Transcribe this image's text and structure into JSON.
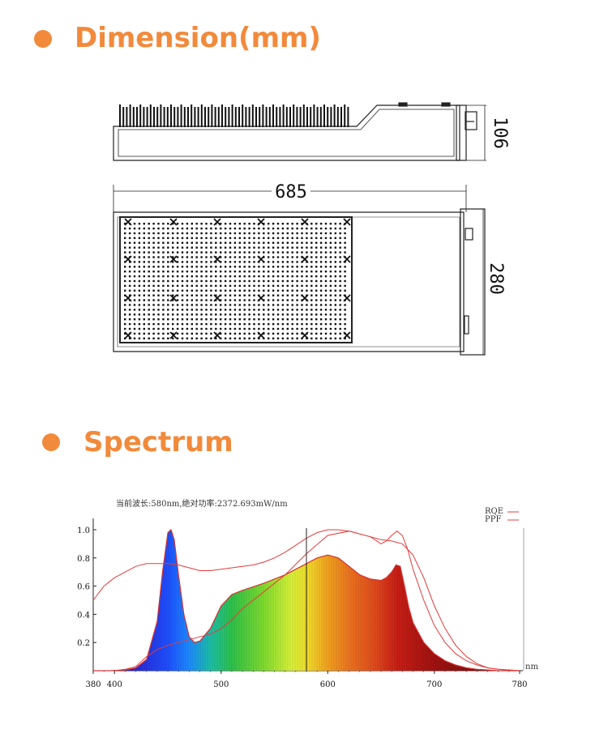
{
  "sections": {
    "dimension_title": "Dimension(mm)",
    "spectrum_title": "Spectrum"
  },
  "drawing": {
    "length_label": "685",
    "height_label": "106",
    "width_label": "280"
  },
  "chart_data": {
    "type": "area",
    "info_text": "当前波长:580nm,绝对功率:2372.693mW/nm",
    "xlabel": "",
    "ylabel": "",
    "x_unit": "nm",
    "xlim": [
      380,
      780
    ],
    "ylim": [
      0,
      1.0
    ],
    "x_ticks": [
      380,
      400,
      500,
      600,
      700,
      780
    ],
    "y_ticks": [
      0.2,
      0.4,
      0.6,
      0.8,
      1.0
    ],
    "cursor_x": 580,
    "legend": [
      {
        "name": "RQE",
        "color": "#e33b3b"
      },
      {
        "name": "PPF",
        "color": "#e33b3b"
      }
    ],
    "series": [
      {
        "name": "",
        "style": "filled-rainbow",
        "x": [
          380,
          395,
          410,
          420,
          430,
          440,
          445,
          450,
          453,
          456,
          460,
          465,
          470,
          475,
          480,
          490,
          500,
          510,
          520,
          540,
          560,
          580,
          590,
          600,
          610,
          620,
          630,
          640,
          650,
          655,
          660,
          664,
          668,
          672,
          676,
          680,
          690,
          700,
          710,
          720,
          730,
          740,
          750,
          760,
          770,
          780
        ],
        "y": [
          0,
          0,
          0.005,
          0.02,
          0.08,
          0.35,
          0.7,
          0.98,
          1.0,
          0.93,
          0.68,
          0.4,
          0.24,
          0.2,
          0.21,
          0.3,
          0.46,
          0.54,
          0.57,
          0.62,
          0.68,
          0.76,
          0.8,
          0.82,
          0.8,
          0.74,
          0.68,
          0.65,
          0.64,
          0.66,
          0.7,
          0.75,
          0.74,
          0.6,
          0.45,
          0.34,
          0.2,
          0.12,
          0.07,
          0.04,
          0.02,
          0.01,
          0.005,
          0,
          0,
          0
        ]
      },
      {
        "name": "RQE",
        "style": "line",
        "x": [
          380,
          390,
          400,
          410,
          420,
          430,
          440,
          450,
          460,
          470,
          480,
          490,
          500,
          510,
          520,
          530,
          540,
          550,
          560,
          570,
          580,
          590,
          600,
          610,
          620,
          630,
          640,
          650,
          660,
          670,
          680,
          690,
          700,
          710,
          720,
          730,
          740,
          750,
          760,
          770,
          780
        ],
        "y": [
          0.5,
          0.6,
          0.66,
          0.7,
          0.74,
          0.76,
          0.76,
          0.76,
          0.75,
          0.73,
          0.71,
          0.71,
          0.72,
          0.73,
          0.74,
          0.75,
          0.77,
          0.8,
          0.84,
          0.89,
          0.94,
          0.98,
          1.0,
          1.0,
          0.99,
          0.97,
          0.95,
          0.93,
          0.92,
          0.9,
          0.82,
          0.66,
          0.46,
          0.3,
          0.18,
          0.1,
          0.05,
          0.02,
          0.01,
          0.005,
          0
        ]
      },
      {
        "name": "PPF",
        "style": "line",
        "x": [
          380,
          400,
          410,
          420,
          430,
          440,
          450,
          460,
          470,
          480,
          490,
          500,
          510,
          520,
          540,
          560,
          580,
          600,
          620,
          640,
          650,
          655,
          660,
          665,
          670,
          675,
          680,
          690,
          700,
          710,
          720,
          730,
          740,
          750,
          760,
          780
        ],
        "y": [
          0,
          0,
          0.01,
          0.03,
          0.1,
          0.15,
          0.18,
          0.2,
          0.22,
          0.24,
          0.26,
          0.3,
          0.36,
          0.44,
          0.56,
          0.68,
          0.83,
          0.96,
          0.99,
          0.95,
          0.9,
          0.92,
          0.96,
          0.99,
          0.96,
          0.86,
          0.72,
          0.5,
          0.32,
          0.2,
          0.12,
          0.07,
          0.04,
          0.02,
          0.01,
          0
        ]
      }
    ]
  }
}
